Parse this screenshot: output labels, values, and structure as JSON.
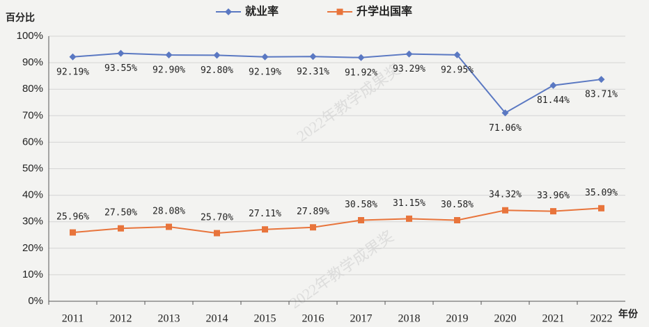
{
  "chart_data": {
    "type": "line",
    "y_label": "百分比",
    "x_label": "年份",
    "watermark": "2022年教学成果奖",
    "categories": [
      "2011",
      "2012",
      "2013",
      "2014",
      "2015",
      "2016",
      "2017",
      "2018",
      "2019",
      "2020",
      "2021",
      "2022"
    ],
    "series": [
      {
        "name": "就业率",
        "color": "#5a78c2",
        "values": [
          92.19,
          93.55,
          92.9,
          92.8,
          92.19,
          92.31,
          91.92,
          93.29,
          92.95,
          71.06,
          81.44,
          83.71
        ],
        "value_labels": [
          "92.19%",
          "93.55%",
          "92.90%",
          "92.80%",
          "92.19%",
          "92.31%",
          "91.92%",
          "93.29%",
          "92.95%",
          "71.06%",
          "81.44%",
          "83.71%"
        ]
      },
      {
        "name": "升学出国率",
        "color": "#e8743b",
        "values": [
          25.96,
          27.5,
          28.08,
          25.7,
          27.11,
          27.89,
          30.58,
          31.15,
          30.58,
          34.32,
          33.96,
          35.09
        ],
        "value_labels": [
          "25.96%",
          "27.50%",
          "28.08%",
          "25.70%",
          "27.11%",
          "27.89%",
          "30.58%",
          "31.15%",
          "30.58%",
          "34.32%",
          "33.96%",
          "35.09%"
        ]
      }
    ],
    "ylim": [
      0,
      100
    ],
    "yticks": [
      {
        "value": 0,
        "label": "0%"
      },
      {
        "value": 10,
        "label": "10%"
      },
      {
        "value": 20,
        "label": "20%"
      },
      {
        "value": 30,
        "label": "30%"
      },
      {
        "value": 40,
        "label": "40%"
      },
      {
        "value": 50,
        "label": "50%"
      },
      {
        "value": 60,
        "label": "60%"
      },
      {
        "value": 70,
        "label": "70%"
      },
      {
        "value": 80,
        "label": "80%"
      },
      {
        "value": 90,
        "label": "90%"
      },
      {
        "value": 100,
        "label": "100%"
      }
    ],
    "grid": true,
    "legend": "top"
  }
}
